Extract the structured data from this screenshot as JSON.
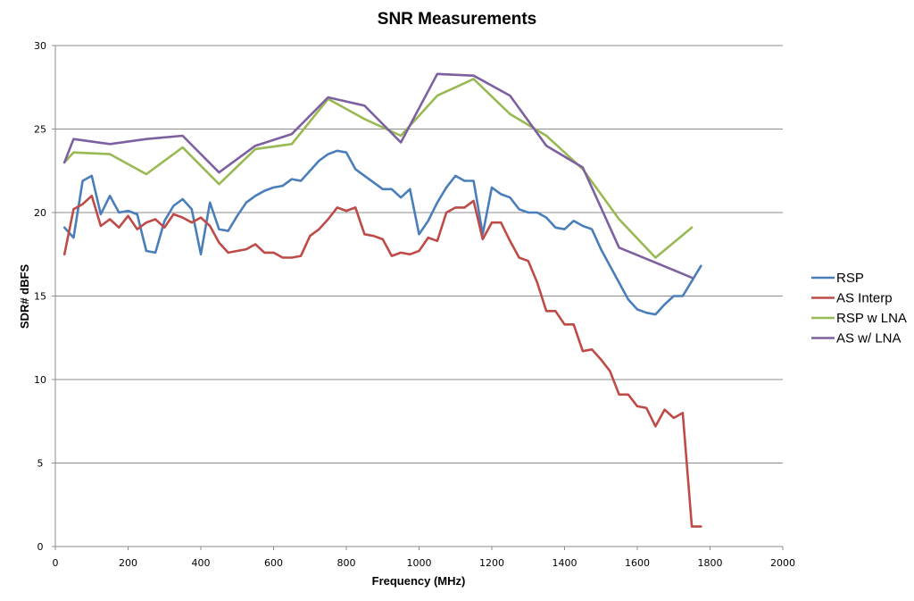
{
  "chart_data": {
    "type": "line",
    "title": "SNR Measurements",
    "xlabel": "Frequency (MHz)",
    "ylabel": "SDR# dBFS",
    "xlim": [
      0,
      2000
    ],
    "ylim": [
      0,
      30
    ],
    "xticks": [
      0,
      200,
      400,
      600,
      800,
      1000,
      1200,
      1400,
      1600,
      1800,
      2000
    ],
    "yticks": [
      0,
      5,
      10,
      15,
      20,
      25,
      30
    ],
    "grid": "horizontal",
    "legend": "right",
    "series": [
      {
        "name": "RSP",
        "color": "#4a7ebb",
        "x": [
          25,
          50,
          75,
          100,
          125,
          150,
          175,
          200,
          225,
          250,
          275,
          300,
          325,
          350,
          375,
          400,
          425,
          450,
          475,
          500,
          525,
          550,
          575,
          600,
          625,
          650,
          675,
          700,
          725,
          750,
          775,
          800,
          825,
          850,
          875,
          900,
          925,
          950,
          975,
          1000,
          1025,
          1050,
          1075,
          1100,
          1125,
          1150,
          1175,
          1200,
          1225,
          1250,
          1275,
          1300,
          1325,
          1350,
          1375,
          1400,
          1425,
          1450,
          1475,
          1500,
          1525,
          1550,
          1575,
          1600,
          1625,
          1650,
          1675,
          1700,
          1725,
          1750,
          1775
        ],
        "y": [
          19.1,
          18.5,
          21.9,
          22.2,
          19.9,
          21.0,
          20.0,
          20.1,
          19.9,
          17.7,
          17.6,
          19.5,
          20.4,
          20.8,
          20.2,
          17.5,
          20.6,
          19.0,
          18.9,
          19.8,
          20.6,
          21.0,
          21.3,
          21.5,
          21.6,
          22.0,
          21.9,
          22.5,
          23.1,
          23.5,
          23.7,
          23.6,
          22.6,
          22.2,
          21.8,
          21.4,
          21.4,
          20.9,
          21.4,
          18.7,
          19.5,
          20.6,
          21.5,
          22.2,
          21.9,
          21.9,
          18.7,
          21.5,
          21.1,
          20.9,
          20.2,
          20.0,
          20.0,
          19.7,
          19.1,
          19.0,
          19.5,
          19.2,
          19.0,
          17.8,
          16.8,
          15.8,
          14.8,
          14.2,
          14.0,
          13.9,
          14.5,
          15.0,
          15.0,
          15.9,
          16.8
        ]
      },
      {
        "name": "AS Interp",
        "color": "#be4b48",
        "x": [
          25,
          50,
          75,
          100,
          125,
          150,
          175,
          200,
          225,
          250,
          275,
          300,
          325,
          350,
          375,
          400,
          425,
          450,
          475,
          500,
          525,
          550,
          575,
          600,
          625,
          650,
          675,
          700,
          725,
          750,
          775,
          800,
          825,
          850,
          875,
          900,
          925,
          950,
          975,
          1000,
          1025,
          1050,
          1075,
          1100,
          1125,
          1150,
          1175,
          1200,
          1225,
          1250,
          1275,
          1300,
          1325,
          1350,
          1375,
          1400,
          1425,
          1450,
          1475,
          1500,
          1525,
          1550,
          1575,
          1600,
          1625,
          1650,
          1675,
          1700,
          1725,
          1750,
          1775
        ],
        "y": [
          17.5,
          20.2,
          20.5,
          21.0,
          19.2,
          19.6,
          19.1,
          19.8,
          19.0,
          19.4,
          19.6,
          19.1,
          19.9,
          19.7,
          19.4,
          19.7,
          19.2,
          18.2,
          17.6,
          17.7,
          17.8,
          18.1,
          17.6,
          17.6,
          17.3,
          17.3,
          17.4,
          18.6,
          19.0,
          19.6,
          20.3,
          20.1,
          20.3,
          18.7,
          18.6,
          18.4,
          17.4,
          17.6,
          17.5,
          17.7,
          18.5,
          18.3,
          20.0,
          20.3,
          20.3,
          20.7,
          18.4,
          19.4,
          19.4,
          18.3,
          17.3,
          17.1,
          15.8,
          14.1,
          14.1,
          13.3,
          13.3,
          11.7,
          11.8,
          11.2,
          10.5,
          9.1,
          9.1,
          8.4,
          8.3,
          7.2,
          8.2,
          7.7,
          8.0,
          1.2,
          1.2
        ]
      },
      {
        "name": "RSP w LNA",
        "color": "#98b954",
        "x": [
          25,
          50,
          150,
          250,
          350,
          450,
          550,
          650,
          750,
          850,
          950,
          1050,
          1150,
          1250,
          1350,
          1450,
          1550,
          1650,
          1750
        ],
        "y": [
          23.0,
          23.6,
          23.5,
          22.3,
          23.9,
          21.7,
          23.8,
          24.1,
          26.8,
          25.6,
          24.6,
          27.0,
          28.0,
          25.9,
          24.6,
          22.6,
          19.6,
          17.3,
          19.1
        ]
      },
      {
        "name": "AS w/ LNA",
        "color": "#7d60a0",
        "x": [
          25,
          50,
          150,
          250,
          350,
          450,
          550,
          650,
          750,
          850,
          950,
          1050,
          1150,
          1250,
          1350,
          1450,
          1550,
          1650,
          1750
        ],
        "y": [
          23.0,
          24.4,
          24.1,
          24.4,
          24.6,
          22.4,
          24.0,
          24.7,
          26.9,
          26.4,
          24.2,
          28.3,
          28.2,
          27.0,
          24.0,
          22.7,
          17.9,
          17.0,
          16.1
        ]
      }
    ]
  }
}
